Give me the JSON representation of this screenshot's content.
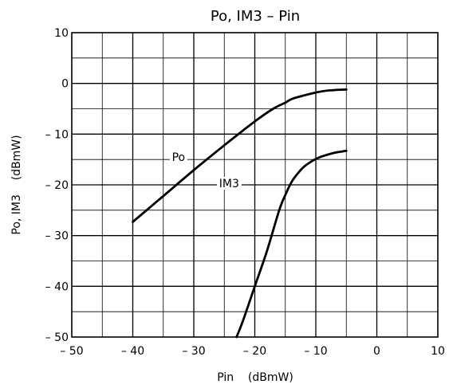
{
  "chart_data": {
    "type": "line",
    "title": "Po, IM3  –  Pin",
    "xlabel": "Pin    (dBmW)",
    "ylabel": "Po, IM3    (dBmW)",
    "xlim": [
      -50,
      10
    ],
    "ylim": [
      -50,
      10
    ],
    "x_ticks": [
      -50,
      -40,
      -30,
      -20,
      -10,
      0,
      10
    ],
    "x_tick_labels": [
      "– 50",
      "– 40",
      "– 30",
      "– 20",
      "– 10",
      "0",
      "10"
    ],
    "y_ticks": [
      10,
      0,
      -10,
      -20,
      -30,
      -40,
      -50
    ],
    "y_tick_labels": [
      "10",
      "0",
      "– 10",
      "– 20",
      "– 30",
      "– 40",
      "– 50"
    ],
    "grid": true,
    "series": [
      {
        "name": "Po",
        "x": [
          -40,
          -35,
          -30,
          -25,
          -20,
          -17,
          -15,
          -14,
          -12,
          -10,
          -8,
          -5
        ],
        "y": [
          -27.3,
          -22.2,
          -17.1,
          -12.2,
          -7.5,
          -5.0,
          -3.8,
          -3.1,
          -2.4,
          -1.8,
          -1.4,
          -1.2
        ]
      },
      {
        "name": "IM3",
        "x": [
          -23,
          -22,
          -20,
          -18,
          -16,
          -15,
          -14,
          -13,
          -12,
          -11,
          -10,
          -9,
          -7,
          -5
        ],
        "y": [
          -50,
          -47,
          -40,
          -33,
          -25,
          -22,
          -19.5,
          -17.8,
          -16.5,
          -15.6,
          -14.9,
          -14.4,
          -13.7,
          -13.3
        ]
      }
    ]
  },
  "colors": {
    "line": "#000000",
    "grid": "#000000",
    "background": "#ffffff"
  }
}
